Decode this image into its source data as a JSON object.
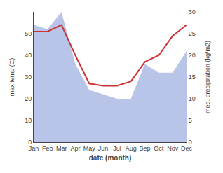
{
  "chart_data": {
    "type": "line",
    "xlabel": "date (month)",
    "ylabel": "max temp (C)",
    "y2label": "med. precipitation (kg/m2)",
    "categories": [
      "Jan",
      "Feb",
      "Mar",
      "Apr",
      "May",
      "Jun",
      "Jul",
      "Aug",
      "Sep",
      "Oct",
      "Nov",
      "Dec"
    ],
    "series": [
      {
        "type": "area",
        "axis": "y2",
        "color": "#b8c4e8",
        "values": [
          27,
          26,
          30,
          18,
          12,
          11,
          10,
          10,
          18,
          16,
          16,
          21
        ]
      },
      {
        "type": "line",
        "color": "#cc3333",
        "values": [
          51,
          51,
          54,
          40,
          27,
          26,
          26,
          28,
          37,
          40,
          49,
          54
        ]
      }
    ],
    "ylim": [
      0,
      60
    ],
    "yticks": [
      0,
      10,
      20,
      30,
      40,
      50
    ],
    "y2lim": [
      0,
      30
    ],
    "y2ticks": [
      0,
      5,
      10,
      15,
      20,
      25,
      30
    ],
    "grid": false
  }
}
